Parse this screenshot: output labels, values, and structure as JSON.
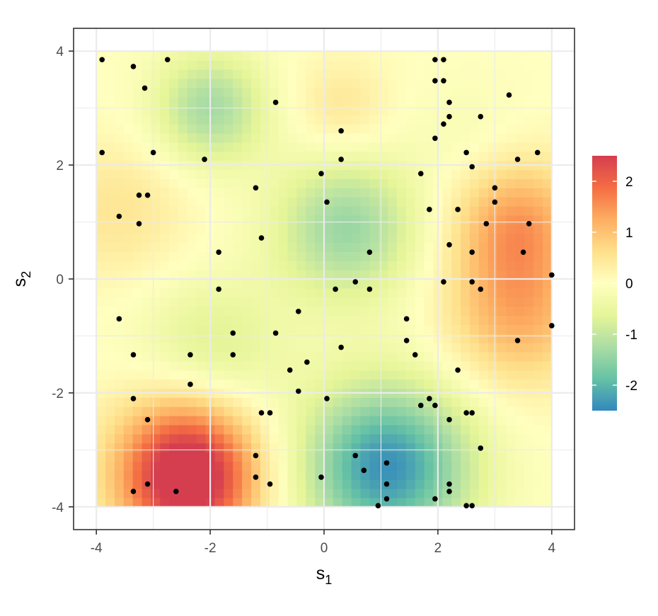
{
  "chart_data": {
    "type": "heatmap",
    "title": "",
    "xlabel": {
      "base": "s",
      "sub": "1"
    },
    "ylabel": {
      "base": "s",
      "sub": "2"
    },
    "xlim": [
      -4.4,
      4.4
    ],
    "ylim": [
      -4.4,
      4.4
    ],
    "x_ticks": [
      -4,
      -2,
      0,
      2,
      4
    ],
    "y_ticks": [
      -4,
      -2,
      0,
      2,
      4
    ],
    "x_tick_labels": [
      "-4",
      "-2",
      "0",
      "2",
      "4"
    ],
    "y_tick_labels": [
      "-4",
      "-2",
      "0",
      "2",
      "4"
    ],
    "grid": true,
    "field_extent": {
      "x": [
        -4,
        4
      ],
      "y": [
        -4,
        4
      ]
    },
    "field_surface": [
      {
        "x": -2.4,
        "y": -3.6,
        "value": 2.5,
        "spread": 0.85
      },
      {
        "x": -2.4,
        "y": -2.8,
        "value": 0.9,
        "spread": 0.9
      },
      {
        "x": 1.1,
        "y": -3.3,
        "value": -2.4,
        "spread": 1.05
      },
      {
        "x": 0.4,
        "y": 0.9,
        "value": -1.4,
        "spread": 0.9
      },
      {
        "x": -2.0,
        "y": 3.0,
        "value": -1.3,
        "spread": 0.7
      },
      {
        "x": 3.4,
        "y": 1.0,
        "value": 1.3,
        "spread": 0.8
      },
      {
        "x": 3.4,
        "y": -0.6,
        "value": 1.2,
        "spread": 0.9
      },
      {
        "x": -3.6,
        "y": 1.2,
        "value": 0.5,
        "spread": 0.9
      },
      {
        "x": 0.3,
        "y": 3.0,
        "value": 0.5,
        "spread": 0.6
      },
      {
        "x": -2.0,
        "y": -1.3,
        "value": -0.8,
        "spread": 0.9
      },
      {
        "x": 2.6,
        "y": 2.5,
        "value": -0.2,
        "spread": 0.7
      }
    ],
    "colorbar": {
      "range": [
        -2.5,
        2.5
      ],
      "breaks": [
        2,
        1,
        0,
        -1,
        -2
      ],
      "break_labels": [
        "2",
        "1",
        "0",
        "-1",
        "-2"
      ],
      "palette": [
        "#3288BD",
        "#66C2A5",
        "#ABDDA4",
        "#E6F598",
        "#FFFFBF",
        "#FEE08B",
        "#FDAE61",
        "#F46D43",
        "#D53E4F"
      ],
      "position": "right"
    },
    "points": [
      [
        -3.9,
        3.85
      ],
      [
        -3.35,
        3.73
      ],
      [
        -2.75,
        3.85
      ],
      [
        -3.15,
        3.35
      ],
      [
        -0.85,
        3.1
      ],
      [
        1.95,
        3.85
      ],
      [
        2.1,
        3.85
      ],
      [
        1.95,
        3.48
      ],
      [
        2.1,
        3.48
      ],
      [
        3.25,
        3.23
      ],
      [
        2.2,
        3.1
      ],
      [
        2.2,
        2.85
      ],
      [
        2.75,
        2.85
      ],
      [
        2.1,
        2.72
      ],
      [
        0.3,
        2.6
      ],
      [
        1.95,
        2.47
      ],
      [
        -3.9,
        2.22
      ],
      [
        -3.0,
        2.22
      ],
      [
        -2.1,
        2.1
      ],
      [
        0.3,
        2.1
      ],
      [
        2.5,
        2.22
      ],
      [
        2.6,
        1.97
      ],
      [
        3.75,
        2.22
      ],
      [
        3.4,
        2.1
      ],
      [
        -0.05,
        1.85
      ],
      [
        1.7,
        1.85
      ],
      [
        -1.2,
        1.6
      ],
      [
        3.0,
        1.6
      ],
      [
        -3.25,
        1.47
      ],
      [
        -3.1,
        1.47
      ],
      [
        0.05,
        1.35
      ],
      [
        3.0,
        1.35
      ],
      [
        1.85,
        1.22
      ],
      [
        2.35,
        1.22
      ],
      [
        -3.6,
        1.1
      ],
      [
        -3.25,
        0.97
      ],
      [
        2.85,
        0.97
      ],
      [
        3.6,
        0.97
      ],
      [
        -1.1,
        0.72
      ],
      [
        2.2,
        0.6
      ],
      [
        -1.85,
        0.47
      ],
      [
        0.8,
        0.47
      ],
      [
        2.6,
        0.47
      ],
      [
        3.5,
        0.47
      ],
      [
        4.0,
        0.07
      ],
      [
        0.55,
        -0.05
      ],
      [
        2.1,
        -0.05
      ],
      [
        2.6,
        -0.05
      ],
      [
        -1.85,
        -0.18
      ],
      [
        0.2,
        -0.18
      ],
      [
        0.8,
        -0.18
      ],
      [
        2.75,
        -0.18
      ],
      [
        -0.45,
        -0.57
      ],
      [
        -3.6,
        -0.7
      ],
      [
        1.45,
        -0.7
      ],
      [
        4.0,
        -0.82
      ],
      [
        -1.6,
        -0.95
      ],
      [
        -0.85,
        -0.95
      ],
      [
        1.45,
        -1.08
      ],
      [
        3.4,
        -1.08
      ],
      [
        0.3,
        -1.2
      ],
      [
        -3.35,
        -1.33
      ],
      [
        -2.35,
        -1.33
      ],
      [
        -1.6,
        -1.33
      ],
      [
        1.6,
        -1.33
      ],
      [
        -0.3,
        -1.46
      ],
      [
        -0.6,
        -1.6
      ],
      [
        2.35,
        -1.6
      ],
      [
        -2.35,
        -1.85
      ],
      [
        -0.45,
        -1.97
      ],
      [
        -3.35,
        -2.1
      ],
      [
        0.05,
        -2.1
      ],
      [
        1.85,
        -2.1
      ],
      [
        1.7,
        -2.22
      ],
      [
        1.95,
        -2.22
      ],
      [
        -1.1,
        -2.35
      ],
      [
        -0.95,
        -2.35
      ],
      [
        2.5,
        -2.35
      ],
      [
        2.6,
        -2.35
      ],
      [
        -3.1,
        -2.47
      ],
      [
        2.2,
        -2.47
      ],
      [
        2.75,
        -2.97
      ],
      [
        -1.2,
        -3.1
      ],
      [
        0.55,
        -3.1
      ],
      [
        1.1,
        -3.23
      ],
      [
        0.7,
        -3.36
      ],
      [
        -1.2,
        -3.48
      ],
      [
        -0.05,
        -3.48
      ],
      [
        -3.1,
        -3.6
      ],
      [
        -0.95,
        -3.6
      ],
      [
        1.1,
        -3.6
      ],
      [
        2.2,
        -3.6
      ],
      [
        -3.35,
        -3.73
      ],
      [
        -2.6,
        -3.73
      ],
      [
        2.2,
        -3.73
      ],
      [
        1.95,
        -3.86
      ],
      [
        1.1,
        -3.86
      ],
      [
        0.95,
        -3.98
      ],
      [
        2.5,
        -3.98
      ],
      [
        2.6,
        -3.98
      ]
    ]
  }
}
